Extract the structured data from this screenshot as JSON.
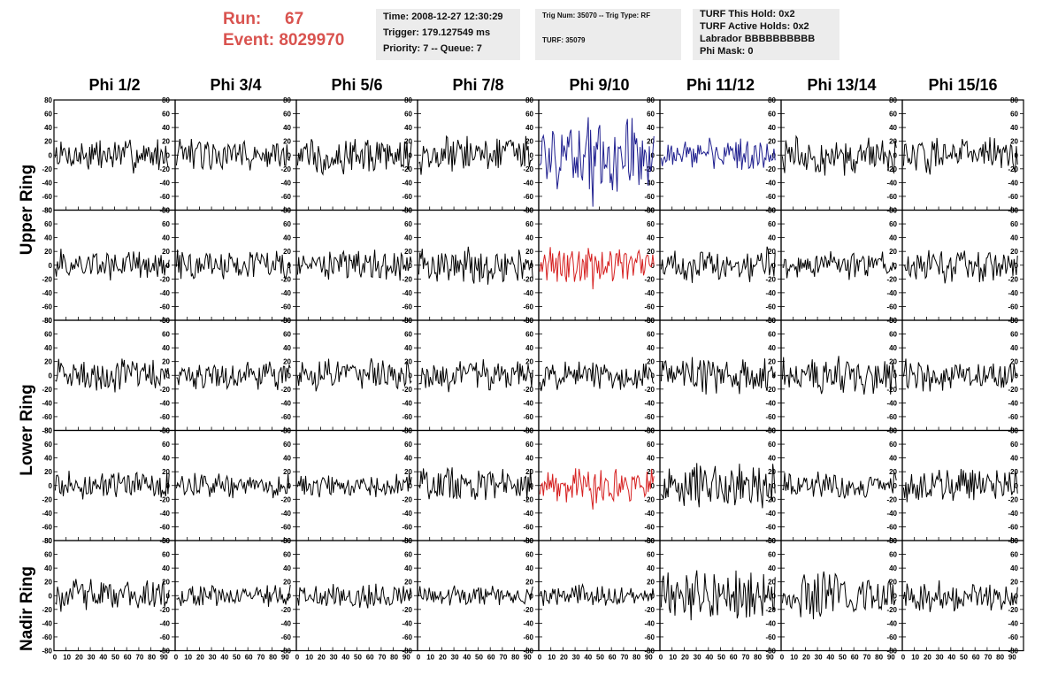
{
  "header": {
    "run_label": "Run:",
    "run_value": "67",
    "event_label": "Event:",
    "event_value": "8029970",
    "time": "Time: 2008-12-27 12:30:29",
    "trigger": "Trigger: 179.127549 ms",
    "priority": "Priority: 7 -- Queue: 7",
    "trig_num": "Trig Num: 35070 -- Trig Type: RF",
    "turf": "TURF: 35079",
    "turf_hold": "TURF This Hold: 0x2",
    "turf_active": "TURF Active Holds: 0x2",
    "labrador": "Labrador BBBBBBBBBB",
    "phi_mask": "Phi Mask: 0"
  },
  "columns": [
    "Phi 1/2",
    "Phi 3/4",
    "Phi 5/6",
    "Phi 7/8",
    "Phi 9/10",
    "Phi 11/12",
    "Phi 13/14",
    "Phi 15/16"
  ],
  "rings": [
    "Upper Ring",
    "Lower Ring",
    "Nadir Ring"
  ],
  "colors": {
    "normal": "#000000",
    "blue": "#1f1f8f",
    "red": "#d62020",
    "run_text": "#d9534f",
    "info_bg": "#ececec"
  },
  "chart_data": {
    "type": "line",
    "title": "",
    "xlabel": "",
    "ylabel": "",
    "xlim": [
      0,
      100
    ],
    "ylim": [
      -80,
      80
    ],
    "x_ticks": [
      0,
      10,
      20,
      30,
      40,
      50,
      60,
      70,
      80,
      90
    ],
    "y_ticks": [
      -80,
      -60,
      -40,
      -20,
      0,
      20,
      40,
      60,
      80
    ],
    "samples_per_trace": 100,
    "panel_rows": 5,
    "panel_cols": 8,
    "highlighted_panels": [
      {
        "row": 0,
        "col": 4,
        "color": "blue",
        "peak": 55,
        "min": -75
      },
      {
        "row": 0,
        "col": 5,
        "color": "blue",
        "peak": 25,
        "min": -20
      },
      {
        "row": 1,
        "col": 4,
        "color": "red",
        "peak": 25,
        "min": -35
      },
      {
        "row": 3,
        "col": 4,
        "color": "red",
        "peak": 20,
        "min": -35
      }
    ],
    "trace_amplitudes": [
      [
        20,
        18,
        22,
        22,
        40,
        18,
        22,
        22
      ],
      [
        18,
        18,
        18,
        22,
        20,
        20,
        16,
        20
      ],
      [
        20,
        16,
        18,
        18,
        18,
        22,
        24,
        18
      ],
      [
        16,
        14,
        14,
        20,
        20,
        26,
        16,
        18
      ],
      [
        20,
        12,
        14,
        12,
        12,
        30,
        26,
        18
      ]
    ]
  }
}
